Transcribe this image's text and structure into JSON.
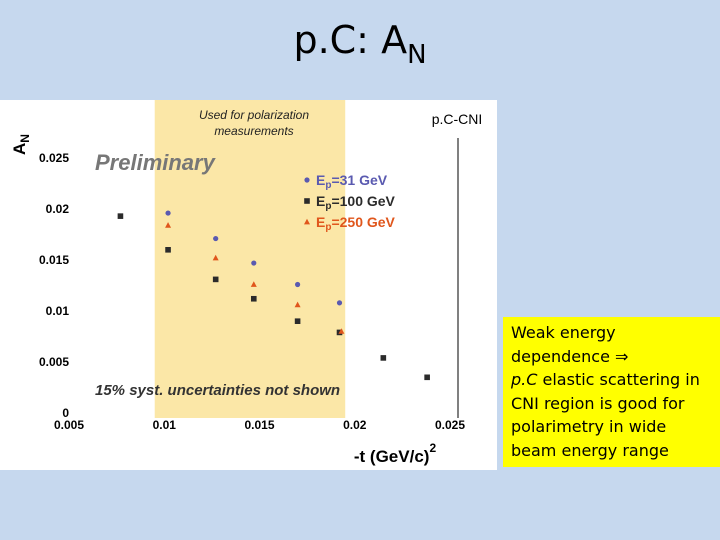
{
  "slide": {
    "title": "p.C: A",
    "title_sub": "N"
  },
  "annotations": {
    "band_label_line1": "Used for polarization",
    "band_label_line2": "measurements",
    "corner_label": "p.C-CNI",
    "preliminary": "Preliminary",
    "syst_note": "15% syst. uncertainties not shown"
  },
  "note": {
    "line1": "Weak energy",
    "line2_text": "dependence",
    "line2_symbol": "⇒",
    "line3_italic": "p.C",
    "line3_rest": " elastic scattering in",
    "line4": "CNI region is good for",
    "line5": "polarimetry in wide",
    "line6": "beam energy range"
  },
  "colors": {
    "background": "#c6d8ee",
    "band": "#fbe7a7",
    "note_bg": "#ffff00",
    "series_31": "#5a5ab0",
    "series_100": "#2b2b2b",
    "series_250": "#e0561c"
  },
  "chart_data": {
    "type": "scatter",
    "xlabel": "-t (GeV/c)",
    "xlabel_sup": "2",
    "ylabel": "A",
    "ylabel_sub": "N",
    "xlim": [
      0.005,
      0.025
    ],
    "ylim": [
      0,
      0.025
    ],
    "x_ticks": [
      "0.005",
      "0.01",
      "0.015",
      "0.02",
      "0.025"
    ],
    "y_ticks": [
      "0",
      "0.005",
      "0.01",
      "0.015",
      "0.02",
      "0.025"
    ],
    "shaded_band_x": [
      0.0095,
      0.0195
    ],
    "series": [
      {
        "name": "E",
        "name_sub": "p",
        "name_rest": "=31 GeV",
        "color": "#5a5ab0",
        "marker": "circle",
        "x": [
          0.0102,
          0.0127,
          0.0147,
          0.017,
          0.0192
        ],
        "y": [
          0.0196,
          0.0171,
          0.0147,
          0.0126,
          0.0108
        ]
      },
      {
        "name": "E",
        "name_sub": "p",
        "name_rest": "=100 GeV",
        "color": "#2b2b2b",
        "marker": "square",
        "x": [
          0.0077,
          0.0102,
          0.0127,
          0.0147,
          0.017,
          0.0192,
          0.0215,
          0.0238
        ],
        "y": [
          0.0193,
          0.016,
          0.0131,
          0.0112,
          0.009,
          0.0079,
          0.0054,
          0.0035
        ]
      },
      {
        "name": "E",
        "name_sub": "p",
        "name_rest": "=250 GeV",
        "color": "#e0561c",
        "marker": "triangle",
        "x": [
          0.0102,
          0.0127,
          0.0147,
          0.017,
          0.0193
        ],
        "y": [
          0.0184,
          0.0152,
          0.0126,
          0.0106,
          0.008
        ]
      }
    ],
    "legend_position": "top-right",
    "grid": false
  }
}
